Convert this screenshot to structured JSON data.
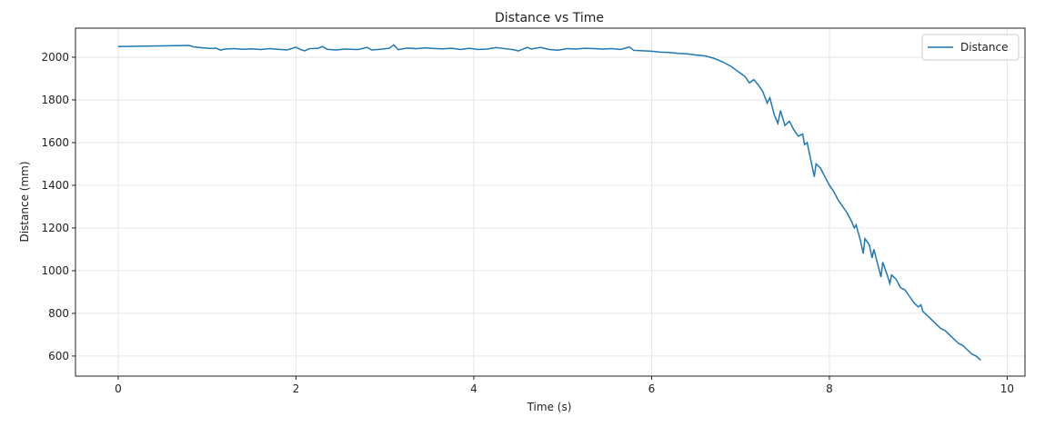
{
  "chart_data": {
    "type": "line",
    "title": "Distance vs Time",
    "x_label": "Time (s)",
    "y_label": "Distance (mm)",
    "x": [
      0,
      0.8,
      0.85,
      0.95,
      1.05,
      1.1,
      1.15,
      1.2,
      1.3,
      1.4,
      1.5,
      1.6,
      1.7,
      1.8,
      1.9,
      2.0,
      2.05,
      2.1,
      2.15,
      2.25,
      2.3,
      2.35,
      2.45,
      2.55,
      2.7,
      2.8,
      2.85,
      2.95,
      3.05,
      3.1,
      3.15,
      3.25,
      3.35,
      3.45,
      3.55,
      3.65,
      3.75,
      3.85,
      3.95,
      4.05,
      4.15,
      4.25,
      4.35,
      4.45,
      4.5,
      4.6,
      4.65,
      4.75,
      4.85,
      4.95,
      5.05,
      5.15,
      5.25,
      5.35,
      5.45,
      5.55,
      5.65,
      5.75,
      5.8,
      5.9,
      6.0,
      6.1,
      6.2,
      6.3,
      6.4,
      6.5,
      6.6,
      6.7,
      6.8,
      6.9,
      6.95,
      7.0,
      7.05,
      7.1,
      7.15,
      7.2,
      7.25,
      7.3,
      7.33,
      7.38,
      7.42,
      7.45,
      7.5,
      7.55,
      7.6,
      7.65,
      7.7,
      7.72,
      7.75,
      7.8,
      7.83,
      7.85,
      7.9,
      7.95,
      8.0,
      8.05,
      8.1,
      8.15,
      8.2,
      8.25,
      8.28,
      8.3,
      8.35,
      8.38,
      8.4,
      8.45,
      8.48,
      8.5,
      8.55,
      8.58,
      8.6,
      8.65,
      8.68,
      8.7,
      8.75,
      8.8,
      8.85,
      8.9,
      8.95,
      9.0,
      9.03,
      9.05,
      9.1,
      9.15,
      9.2,
      9.25,
      9.3,
      9.35,
      9.4,
      9.45,
      9.5,
      9.55,
      9.6,
      9.65,
      9.68,
      9.7
    ],
    "series": [
      {
        "name": "Distance",
        "color": "#1f77b4",
        "values": [
          2050,
          2055,
          2048,
          2044,
          2041,
          2043,
          2033,
          2038,
          2040,
          2037,
          2039,
          2036,
          2040,
          2037,
          2034,
          2047,
          2036,
          2030,
          2040,
          2042,
          2050,
          2037,
          2034,
          2038,
          2036,
          2046,
          2034,
          2037,
          2042,
          2058,
          2035,
          2043,
          2040,
          2044,
          2041,
          2039,
          2042,
          2036,
          2042,
          2036,
          2038,
          2045,
          2040,
          2035,
          2029,
          2046,
          2038,
          2046,
          2036,
          2033,
          2040,
          2038,
          2042,
          2040,
          2038,
          2040,
          2036,
          2048,
          2032,
          2030,
          2028,
          2024,
          2022,
          2018,
          2016,
          2010,
          2006,
          1995,
          1978,
          1955,
          1940,
          1925,
          1910,
          1880,
          1895,
          1870,
          1840,
          1785,
          1810,
          1730,
          1690,
          1750,
          1680,
          1700,
          1660,
          1630,
          1640,
          1590,
          1600,
          1500,
          1440,
          1500,
          1480,
          1440,
          1400,
          1370,
          1330,
          1300,
          1270,
          1230,
          1200,
          1215,
          1140,
          1080,
          1150,
          1120,
          1060,
          1100,
          1020,
          970,
          1040,
          980,
          940,
          980,
          960,
          920,
          910,
          880,
          850,
          830,
          840,
          810,
          790,
          770,
          750,
          730,
          720,
          700,
          680,
          660,
          650,
          630,
          610,
          600,
          590,
          580
        ]
      }
    ],
    "xlim": [
      -0.48,
      10.2
    ],
    "ylim": [
      506,
      2136
    ],
    "xticks": [
      0,
      2,
      4,
      6,
      8,
      10
    ],
    "yticks": [
      600,
      800,
      1000,
      1200,
      1400,
      1600,
      1800,
      2000
    ],
    "grid": true,
    "legend": "upper right"
  }
}
